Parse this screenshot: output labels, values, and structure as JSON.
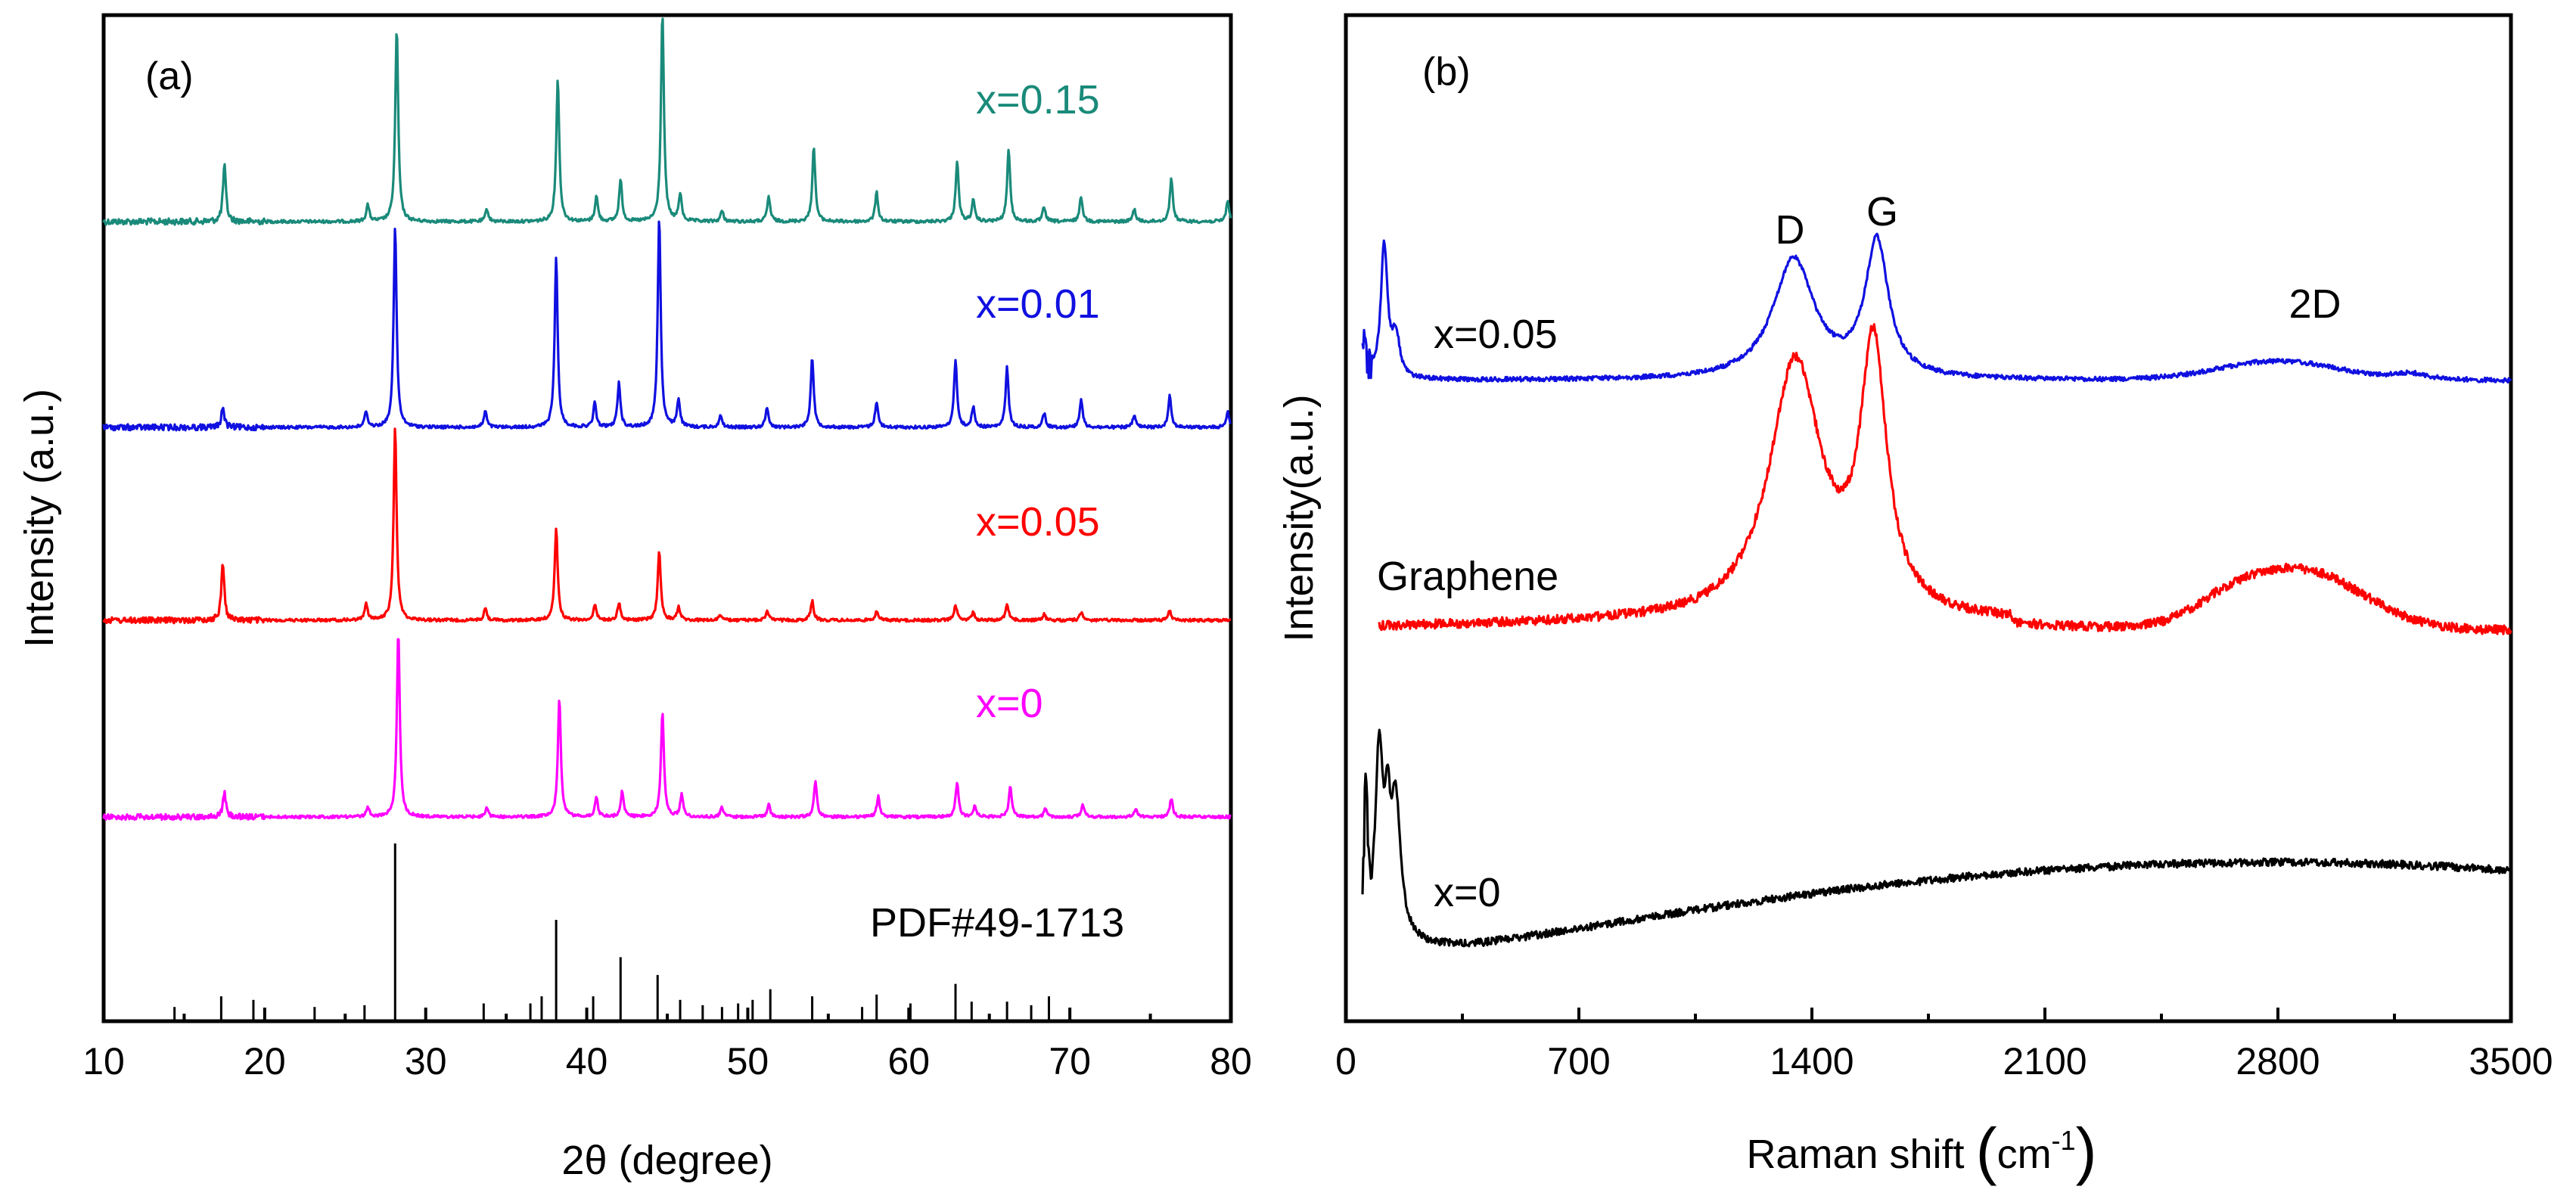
{
  "chart_data": [
    {
      "type": "line",
      "panel_label": "(a)",
      "xlabel": "2θ (degree)",
      "ylabel": "Intensity (a.u.)",
      "xlim": [
        10,
        80
      ],
      "xticks": [
        "10",
        "20",
        "30",
        "40",
        "50",
        "60",
        "70",
        "80"
      ],
      "xtick_values": [
        10,
        20,
        30,
        40,
        50,
        60,
        70,
        80
      ],
      "y_ticks_shown": false,
      "reference": {
        "label": "PDF#49-1713",
        "positions": [
          14.4,
          17.3,
          19.3,
          23.1,
          26.2,
          28.1,
          33.6,
          36.5,
          37.2,
          38.1,
          40.4,
          42.1,
          44.4,
          45.8,
          47.2,
          48.4,
          49.4,
          50.3,
          51.4,
          54.0,
          57.1,
          58.0,
          60.1,
          62.9,
          63.9,
          66.1,
          67.6,
          68.7
        ],
        "heights": [
          0.08,
          0.14,
          0.12,
          0.08,
          0.09,
          1.0,
          0.1,
          0.1,
          0.14,
          0.57,
          0.14,
          0.36,
          0.26,
          0.12,
          0.09,
          0.08,
          0.1,
          0.12,
          0.18,
          0.14,
          0.08,
          0.15,
          0.1,
          0.21,
          0.11,
          0.11,
          0.09,
          0.14
        ]
      },
      "series": [
        {
          "name": "x=0.15",
          "color": "#1a8a7a",
          "peaks": [
            [
              17.5,
              0.27
            ],
            [
              26.4,
              0.08
            ],
            [
              28.2,
              0.93
            ],
            [
              33.8,
              0.06
            ],
            [
              38.2,
              0.69
            ],
            [
              40.6,
              0.12
            ],
            [
              42.1,
              0.2
            ],
            [
              44.7,
              1.0
            ],
            [
              45.8,
              0.13
            ],
            [
              48.4,
              0.05
            ],
            [
              51.3,
              0.12
            ],
            [
              54.1,
              0.36
            ],
            [
              58.0,
              0.14
            ],
            [
              63.0,
              0.29
            ],
            [
              64.0,
              0.1
            ],
            [
              66.2,
              0.35
            ],
            [
              68.4,
              0.07
            ],
            [
              70.7,
              0.12
            ],
            [
              74.0,
              0.06
            ],
            [
              76.3,
              0.21
            ],
            [
              79.8,
              0.1
            ]
          ]
        },
        {
          "name": "x=0.01",
          "color": "#1010e0",
          "peaks": [
            [
              17.4,
              0.1
            ],
            [
              26.3,
              0.08
            ],
            [
              28.1,
              1.0
            ],
            [
              33.7,
              0.08
            ],
            [
              38.1,
              0.85
            ],
            [
              40.5,
              0.12
            ],
            [
              42.0,
              0.22
            ],
            [
              44.5,
              1.05
            ],
            [
              45.7,
              0.14
            ],
            [
              48.3,
              0.06
            ],
            [
              51.2,
              0.1
            ],
            [
              54.0,
              0.35
            ],
            [
              58.0,
              0.13
            ],
            [
              62.9,
              0.34
            ],
            [
              64.0,
              0.1
            ],
            [
              66.1,
              0.3
            ],
            [
              68.4,
              0.07
            ],
            [
              70.7,
              0.14
            ],
            [
              74.0,
              0.06
            ],
            [
              76.2,
              0.16
            ],
            [
              79.8,
              0.08
            ]
          ]
        },
        {
          "name": "x=0.05",
          "color": "#ff0000",
          "peaks": [
            [
              17.4,
              0.3
            ],
            [
              26.3,
              0.09
            ],
            [
              28.1,
              1.0
            ],
            [
              33.7,
              0.06
            ],
            [
              38.1,
              0.48
            ],
            [
              40.5,
              0.08
            ],
            [
              42.0,
              0.09
            ],
            [
              44.5,
              0.36
            ],
            [
              45.7,
              0.07
            ],
            [
              48.3,
              0.03
            ],
            [
              51.2,
              0.05
            ],
            [
              54.0,
              0.1
            ],
            [
              58.0,
              0.05
            ],
            [
              62.9,
              0.08
            ],
            [
              64.0,
              0.04
            ],
            [
              66.1,
              0.09
            ],
            [
              68.4,
              0.03
            ],
            [
              70.7,
              0.04
            ],
            [
              76.2,
              0.05
            ]
          ]
        },
        {
          "name": "x=0",
          "color": "#ff00ff",
          "peaks": [
            [
              17.5,
              0.13
            ],
            [
              26.4,
              0.05
            ],
            [
              28.3,
              1.0
            ],
            [
              33.8,
              0.05
            ],
            [
              38.3,
              0.64
            ],
            [
              40.6,
              0.1
            ],
            [
              42.2,
              0.14
            ],
            [
              44.7,
              0.57
            ],
            [
              45.9,
              0.12
            ],
            [
              48.4,
              0.05
            ],
            [
              51.3,
              0.07
            ],
            [
              54.2,
              0.19
            ],
            [
              58.1,
              0.11
            ],
            [
              63.0,
              0.19
            ],
            [
              64.1,
              0.06
            ],
            [
              66.3,
              0.16
            ],
            [
              68.5,
              0.05
            ],
            [
              70.8,
              0.07
            ],
            [
              74.1,
              0.05
            ],
            [
              76.3,
              0.1
            ]
          ]
        }
      ]
    },
    {
      "type": "line",
      "panel_label": "(b)",
      "xlabel": "Raman shift",
      "xlabel_unit": "cm",
      "xlabel_unit_exponent": "-1",
      "ylabel": "Intensity(a.u.)",
      "xlim": [
        0,
        3500
      ],
      "xticks": [
        "0",
        "700",
        "1400",
        "2100",
        "2800",
        "3500"
      ],
      "xtick_values": [
        0,
        700,
        1400,
        2100,
        2800,
        3500
      ],
      "y_ticks_shown": false,
      "annotations": [
        "D",
        "G",
        "2D"
      ],
      "series": [
        {
          "name": "x=0.05",
          "color": "#1010e0",
          "start_x": 50
        },
        {
          "name": "Graphene",
          "color": "#ff0000",
          "start_x": 100
        },
        {
          "name": "x=0",
          "color": "#000000",
          "start_x": 50
        }
      ]
    }
  ]
}
